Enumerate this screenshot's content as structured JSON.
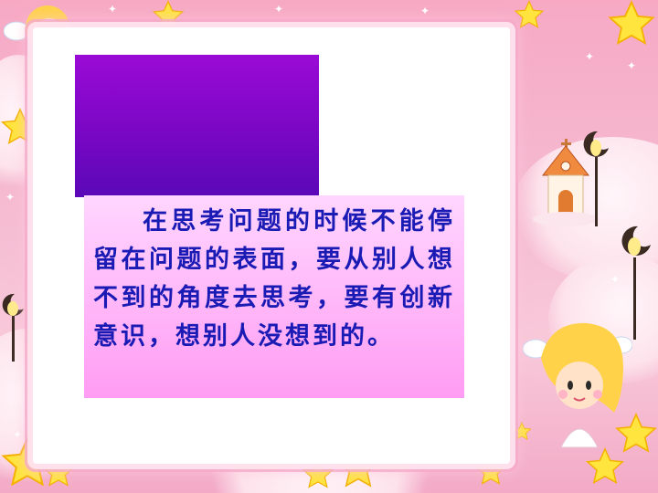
{
  "slide": {
    "body_text": "在思考问题的时候不能停留在问题的表面，要从别人想不到的角度去思考，要有创新意识，想别人没想到的。"
  },
  "colors": {
    "accent_purple": "#7a07c4",
    "text_blue": "#1a1ab4",
    "panel_pink": "#ff9cf3",
    "background_pink": "#f5b8cf"
  },
  "decorations": [
    "star-icon",
    "angel-icon",
    "church-icon",
    "moon-lamp-icon",
    "cloud-icon",
    "sparkle-icon"
  ]
}
